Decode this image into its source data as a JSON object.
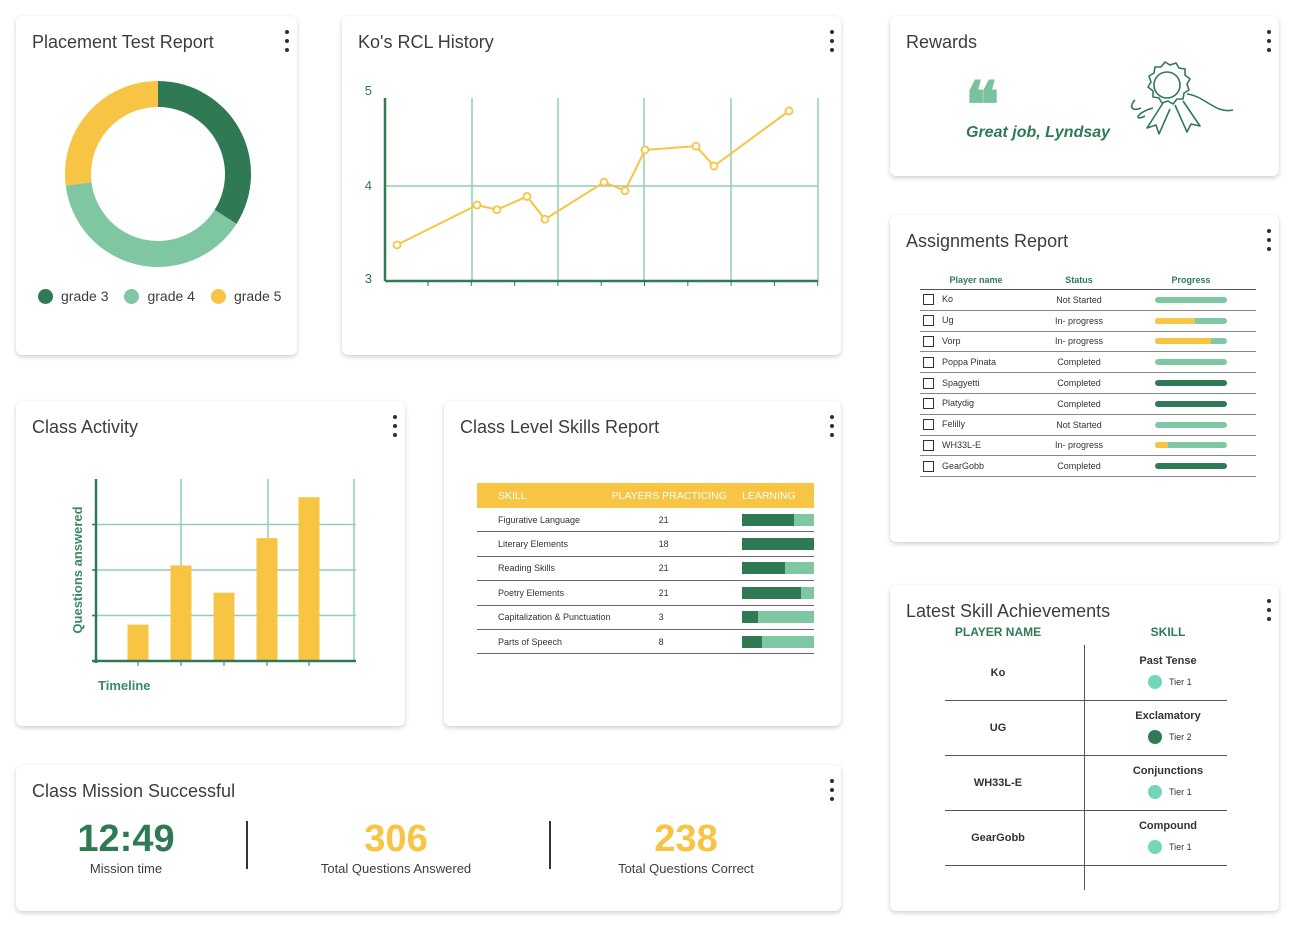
{
  "colors": {
    "dark_green": "#2f7a55",
    "light_green": "#7fc7a3",
    "yellow": "#f7c443",
    "grid": "#8fd1b0",
    "teal_dot": "#73d6b8"
  },
  "placement": {
    "title": "Placement Test Report",
    "menu_icon": "more-vertical-icon",
    "chart_data": {
      "type": "pie",
      "donut": true,
      "slices": [
        {
          "label": "grade 3",
          "value": 34,
          "color": "#2f7a55"
        },
        {
          "label": "grade 4",
          "value": 39,
          "color": "#7fc7a3"
        },
        {
          "label": "grade 5",
          "value": 27,
          "color": "#f7c443"
        }
      ],
      "legend": [
        "grade 3",
        "grade 4",
        "grade 5"
      ]
    }
  },
  "rcl": {
    "title": "Ko's RCL History",
    "menu_icon": "more-vertical-icon",
    "chart_data": {
      "type": "line",
      "title": "Ko's RCL History",
      "ylim": [
        3,
        5
      ],
      "yticks": [
        "3",
        "4",
        "5"
      ],
      "series": [
        {
          "values": [
            3.38,
            3.8,
            3.75,
            3.89,
            3.65,
            4.04,
            3.95,
            4.38,
            4.42,
            4.21,
            4.79
          ]
        }
      ],
      "color": "#f7c443"
    }
  },
  "rewards": {
    "title": "Rewards",
    "quote_glyph": "❝",
    "message": "Great job, Lyndsay",
    "icon": "award-ribbon-icon"
  },
  "assignments": {
    "title": "Assignments Report",
    "columns": [
      "Player name",
      "Status",
      "Progress"
    ],
    "rows": [
      {
        "name": "Ko",
        "status": "Not Started",
        "progress": 0,
        "done": false
      },
      {
        "name": "Ug",
        "status": "In- progress",
        "progress": 0.55,
        "done": false
      },
      {
        "name": "Vorp",
        "status": "In- progress",
        "progress": 0.78,
        "done": false
      },
      {
        "name": "Poppa Pinata",
        "status": "Completed",
        "progress": 0,
        "done": false
      },
      {
        "name": "Spagyetti",
        "status": "Completed",
        "progress": 1,
        "done": true
      },
      {
        "name": "Platydig",
        "status": "Completed",
        "progress": 1,
        "done": true
      },
      {
        "name": "Felilly",
        "status": "Not Started",
        "progress": 0,
        "done": false
      },
      {
        "name": "WH33L-E",
        "status": "In- progress",
        "progress": 0.18,
        "done": false
      },
      {
        "name": "GearGobb",
        "status": "Completed",
        "progress": 1,
        "done": true
      }
    ]
  },
  "activity": {
    "title": "Class Activity",
    "ylabel": "Questions answered",
    "xlabel": "Timeline",
    "chart_data": {
      "type": "bar",
      "xlabel": "Timeline",
      "ylabel": "Questions answered",
      "values": [
        0.8,
        2.1,
        1.5,
        2.7,
        3.6
      ],
      "ylim": [
        0,
        4
      ],
      "color": "#f7c443"
    }
  },
  "skills": {
    "title": "Class Level Skills Report",
    "columns": [
      "SKILL",
      "PLAYERS PRACTICING",
      "LEARNING"
    ],
    "rows": [
      {
        "skill": "Figurative Language",
        "players": "21",
        "learning": 0.72
      },
      {
        "skill": "Literary Elements",
        "players": "18",
        "learning": 1.0
      },
      {
        "skill": "Reading Skills",
        "players": "21",
        "learning": 0.6
      },
      {
        "skill": "Poetry Elements",
        "players": "21",
        "learning": 0.82
      },
      {
        "skill": "Capitalization & Punctuation",
        "players": "3",
        "learning": 0.22
      },
      {
        "skill": "Parts of Speech",
        "players": "8",
        "learning": 0.28
      }
    ]
  },
  "mission": {
    "title": "Class Mission Successful",
    "stats": [
      {
        "value": "12:49",
        "label": "Mission time",
        "color": "#2f7a55"
      },
      {
        "value": "306",
        "label": "Total Questions Answered",
        "color": "#f7c443"
      },
      {
        "value": "238",
        "label": "Total Questions Correct",
        "color": "#f7c443"
      }
    ]
  },
  "achievements": {
    "title": "Latest Skill Achievements",
    "columns": [
      "PLAYER NAME",
      "SKILL"
    ],
    "rows": [
      {
        "player": "Ko",
        "skill": "Past Tense",
        "tier": "Tier 1",
        "tier_color": "#73d6b8"
      },
      {
        "player": "UG",
        "skill": "Exclamatory",
        "tier": "Tier 2",
        "tier_color": "#2f7a55"
      },
      {
        "player": "WH33L-E",
        "skill": "Conjunctions",
        "tier": "Tier 1",
        "tier_color": "#73d6b8"
      },
      {
        "player": "GearGobb",
        "skill": "Compound",
        "tier": "Tier 1",
        "tier_color": "#73d6b8"
      }
    ]
  }
}
